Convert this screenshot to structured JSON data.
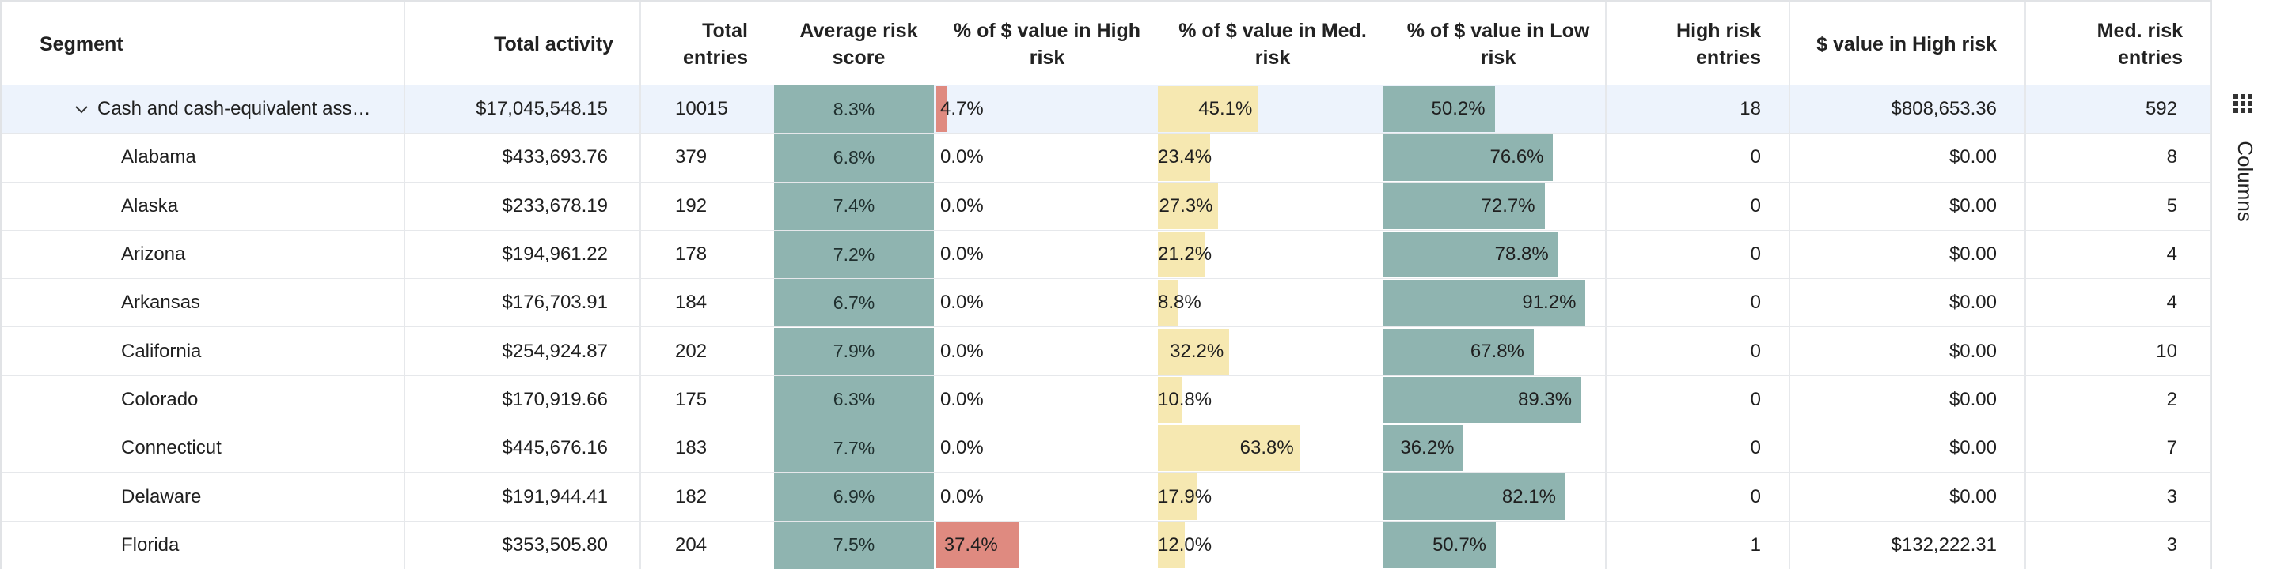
{
  "columns": {
    "segment": "Segment",
    "total_activity": "Total activity",
    "total_entries": "Total entries",
    "avg_risk": "Average risk score",
    "pct_high": "% of $ value in High risk",
    "pct_med": "% of $ value in Med. risk",
    "pct_low": "% of $ value in Low risk",
    "high_entries": "High risk entries",
    "value_high": "$ value in High risk",
    "med_entries": "Med. risk entries"
  },
  "side_panel": {
    "columns_label": "Columns",
    "icon": "grid-icon"
  },
  "colors": {
    "high": "#df8a80",
    "med": "#f6e8b1",
    "low": "#8fb4b0",
    "selected": "#edf3fc"
  },
  "rows": [
    {
      "segment": "Cash and cash-equivalent ass…",
      "total_activity": "$17,045,548.15",
      "total_entries": "10015",
      "avg_risk": "8.3%",
      "pct_high": 4.7,
      "pct_high_label": "4.7%",
      "pct_med": 45.1,
      "pct_med_label": "45.1%",
      "pct_low": 50.2,
      "pct_low_label": "50.2%",
      "high_entries": "18",
      "value_high": "$808,653.36",
      "med_entries": "592",
      "group": true
    },
    {
      "segment": "Alabama",
      "total_activity": "$433,693.76",
      "total_entries": "379",
      "avg_risk": "6.8%",
      "pct_high": 0,
      "pct_high_label": "0.0%",
      "pct_med": 23.4,
      "pct_med_label": "23.4%",
      "pct_low": 76.6,
      "pct_low_label": "76.6%",
      "high_entries": "0",
      "value_high": "$0.00",
      "med_entries": "8"
    },
    {
      "segment": "Alaska",
      "total_activity": "$233,678.19",
      "total_entries": "192",
      "avg_risk": "7.4%",
      "pct_high": 0,
      "pct_high_label": "0.0%",
      "pct_med": 27.3,
      "pct_med_label": "27.3%",
      "pct_low": 72.7,
      "pct_low_label": "72.7%",
      "high_entries": "0",
      "value_high": "$0.00",
      "med_entries": "5"
    },
    {
      "segment": "Arizona",
      "total_activity": "$194,961.22",
      "total_entries": "178",
      "avg_risk": "7.2%",
      "pct_high": 0,
      "pct_high_label": "0.0%",
      "pct_med": 21.2,
      "pct_med_label": "21.2%",
      "pct_low": 78.8,
      "pct_low_label": "78.8%",
      "high_entries": "0",
      "value_high": "$0.00",
      "med_entries": "4"
    },
    {
      "segment": "Arkansas",
      "total_activity": "$176,703.91",
      "total_entries": "184",
      "avg_risk": "6.7%",
      "pct_high": 0,
      "pct_high_label": "0.0%",
      "pct_med": 8.8,
      "pct_med_label": "8.8%",
      "pct_low": 91.2,
      "pct_low_label": "91.2%",
      "high_entries": "0",
      "value_high": "$0.00",
      "med_entries": "4"
    },
    {
      "segment": "California",
      "total_activity": "$254,924.87",
      "total_entries": "202",
      "avg_risk": "7.9%",
      "pct_high": 0,
      "pct_high_label": "0.0%",
      "pct_med": 32.2,
      "pct_med_label": "32.2%",
      "pct_low": 67.8,
      "pct_low_label": "67.8%",
      "high_entries": "0",
      "value_high": "$0.00",
      "med_entries": "10"
    },
    {
      "segment": "Colorado",
      "total_activity": "$170,919.66",
      "total_entries": "175",
      "avg_risk": "6.3%",
      "pct_high": 0,
      "pct_high_label": "0.0%",
      "pct_med": 10.8,
      "pct_med_label": "10.8%",
      "pct_low": 89.3,
      "pct_low_label": "89.3%",
      "high_entries": "0",
      "value_high": "$0.00",
      "med_entries": "2"
    },
    {
      "segment": "Connecticut",
      "total_activity": "$445,676.16",
      "total_entries": "183",
      "avg_risk": "7.7%",
      "pct_high": 0,
      "pct_high_label": "0.0%",
      "pct_med": 63.8,
      "pct_med_label": "63.8%",
      "pct_low": 36.2,
      "pct_low_label": "36.2%",
      "high_entries": "0",
      "value_high": "$0.00",
      "med_entries": "7"
    },
    {
      "segment": "Delaware",
      "total_activity": "$191,944.41",
      "total_entries": "182",
      "avg_risk": "6.9%",
      "pct_high": 0,
      "pct_high_label": "0.0%",
      "pct_med": 17.9,
      "pct_med_label": "17.9%",
      "pct_low": 82.1,
      "pct_low_label": "82.1%",
      "high_entries": "0",
      "value_high": "$0.00",
      "med_entries": "3"
    },
    {
      "segment": "Florida",
      "total_activity": "$353,505.80",
      "total_entries": "204",
      "avg_risk": "7.5%",
      "pct_high": 37.4,
      "pct_high_label": "37.4%",
      "pct_med": 12.0,
      "pct_med_label": "12.0%",
      "pct_low": 50.7,
      "pct_low_label": "50.7%",
      "high_entries": "1",
      "value_high": "$132,222.31",
      "med_entries": "3"
    }
  ]
}
